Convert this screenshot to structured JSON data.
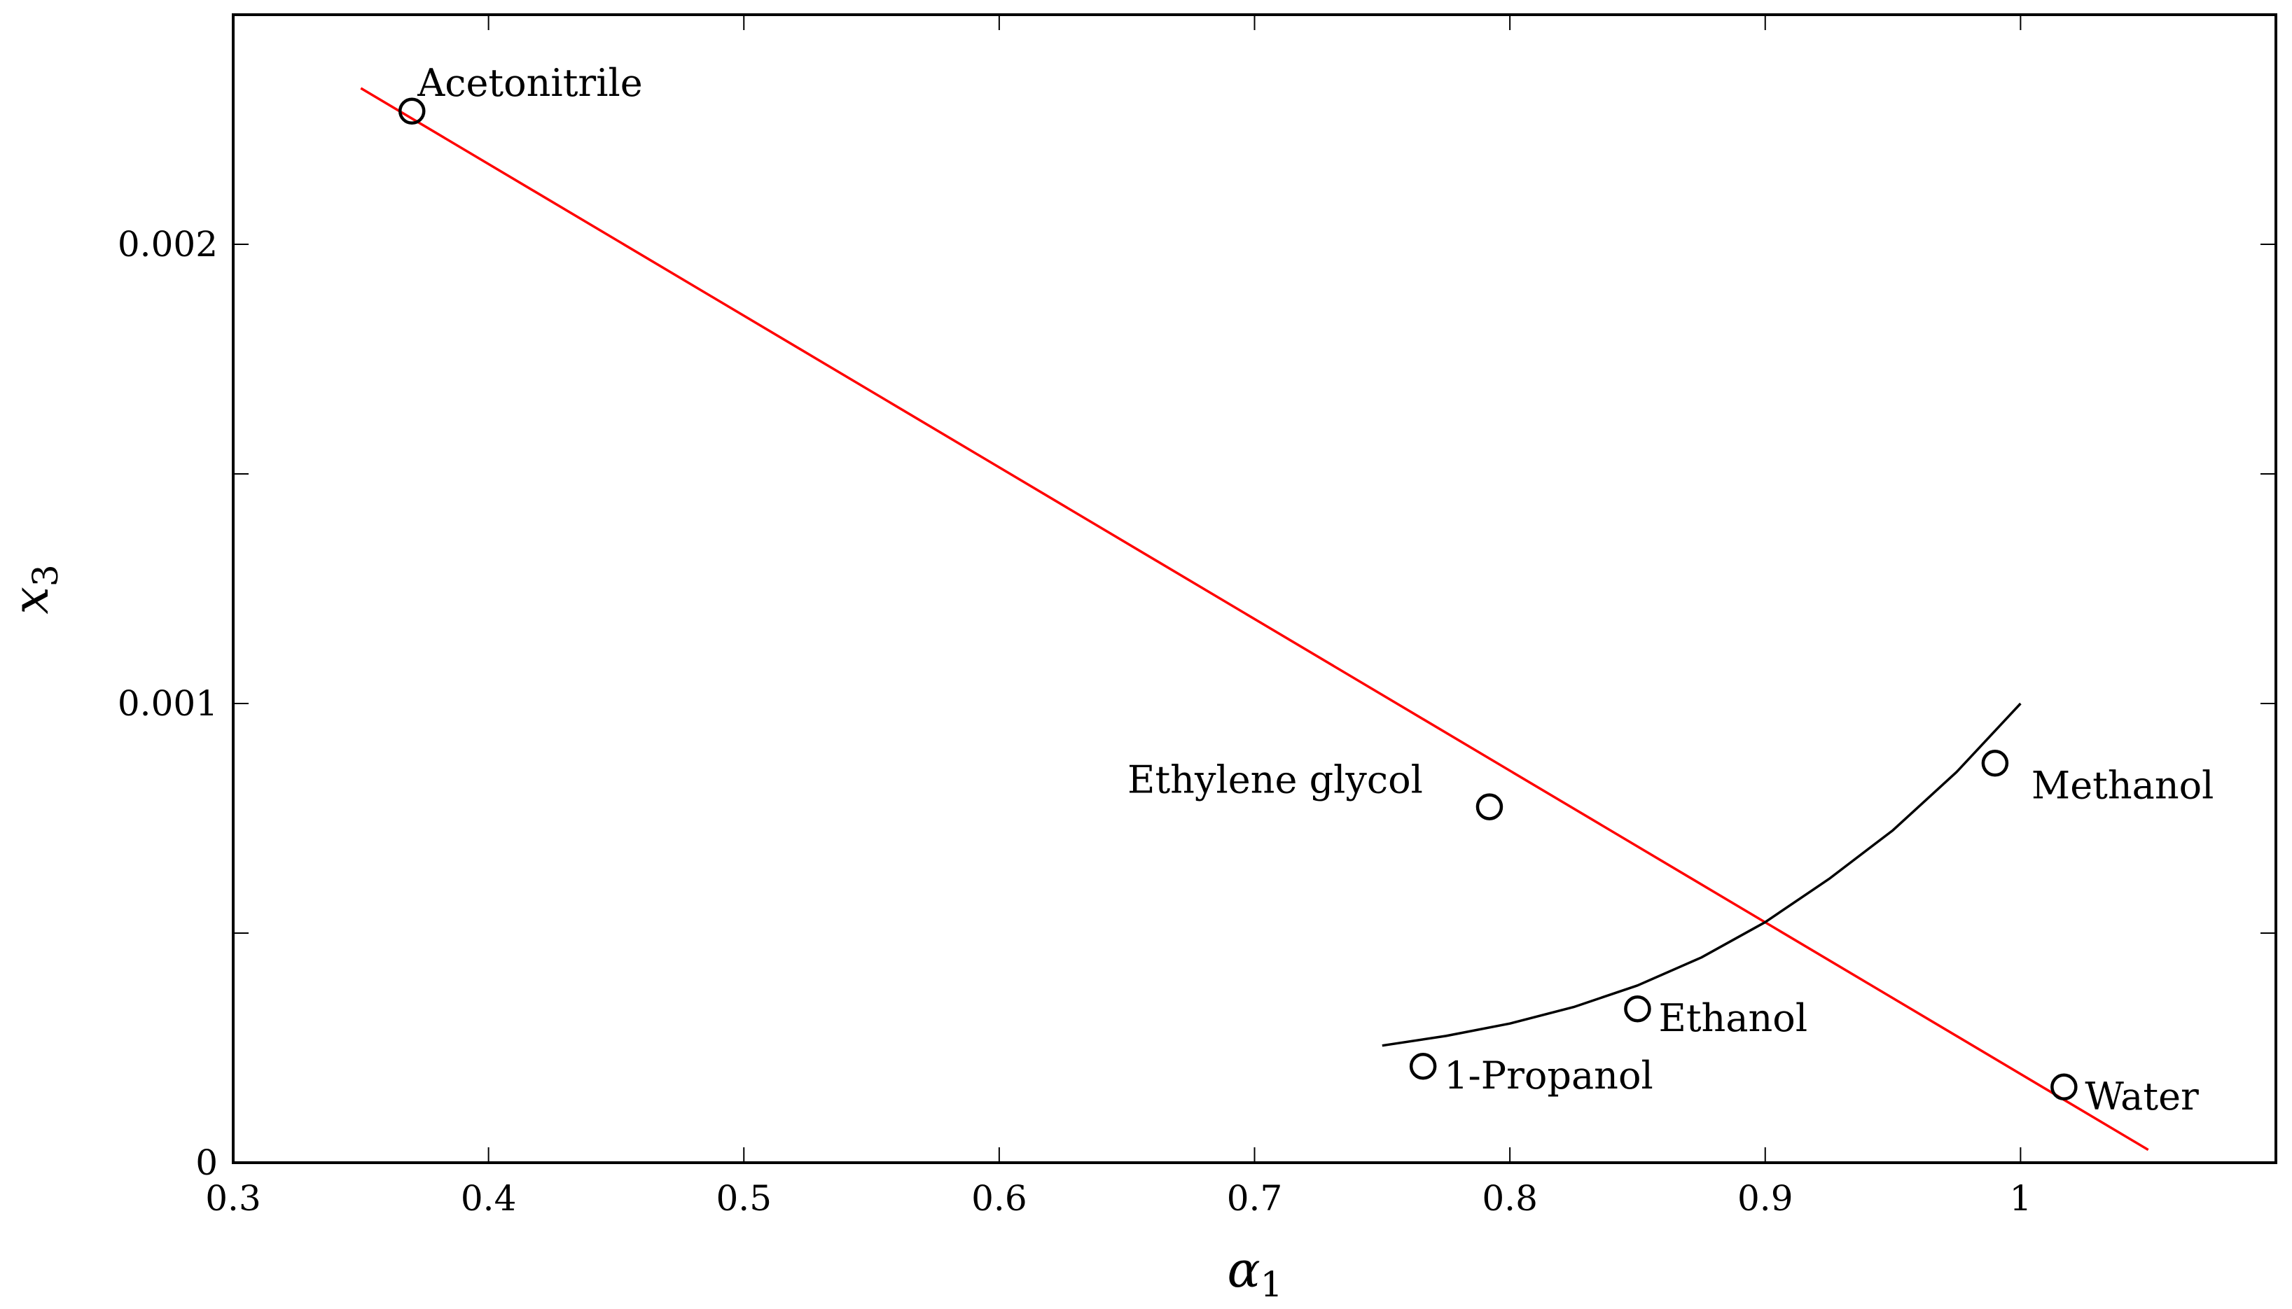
{
  "chart_data": {
    "type": "scatter",
    "title": "",
    "xlabel": {
      "symbol": "α",
      "subscript": "1"
    },
    "ylabel": {
      "symbol": "x",
      "subscript": "3"
    },
    "xlim": [
      0.3,
      1.1
    ],
    "ylim": [
      0,
      0.0025
    ],
    "x_ticks": [
      {
        "value": 0.3,
        "label": "0.3"
      },
      {
        "value": 0.4,
        "label": "0.4"
      },
      {
        "value": 0.5,
        "label": "0.5"
      },
      {
        "value": 0.6,
        "label": "0.6"
      },
      {
        "value": 0.7,
        "label": "0.7"
      },
      {
        "value": 0.8,
        "label": "0.8"
      },
      {
        "value": 0.9,
        "label": "0.9"
      },
      {
        "value": 1.0,
        "label": "1"
      },
      {
        "value": 1.1,
        "label": ""
      }
    ],
    "y_ticks": [
      {
        "value": 0,
        "label": "0"
      },
      {
        "value": 0.0005,
        "label": ""
      },
      {
        "value": 0.001,
        "label": "0.001"
      },
      {
        "value": 0.0015,
        "label": ""
      },
      {
        "value": 0.002,
        "label": "0.002"
      }
    ],
    "grid": false,
    "points": [
      {
        "label": "Acetonitrile",
        "x": 0.37,
        "y": 0.00229,
        "label_anchor": "above-right"
      },
      {
        "label": "Ethylene glycol",
        "x": 0.792,
        "y": 0.000775,
        "label_anchor": "left"
      },
      {
        "label": "Methanol",
        "x": 0.99,
        "y": 0.00087,
        "label_anchor": "below-right"
      },
      {
        "label": "Ethanol",
        "x": 0.85,
        "y": 0.000335,
        "label_anchor": "right"
      },
      {
        "label": "1-Propanol",
        "x": 0.766,
        "y": 0.00021,
        "label_anchor": "right"
      },
      {
        "label": "Water",
        "x": 1.017,
        "y": 0.000165,
        "label_anchor": "right"
      }
    ],
    "lines": [
      {
        "kind": "linear",
        "color": "#ff0000",
        "x": [
          0.35,
          1.05
        ],
        "y": [
          0.00234,
          2.8e-05
        ]
      },
      {
        "kind": "curve",
        "color": "#000000",
        "x": [
          0.75,
          0.775,
          0.8,
          0.825,
          0.85,
          0.875,
          0.9,
          0.925,
          0.95,
          0.975,
          1.0
        ],
        "y": [
          0.000255,
          0.000276,
          0.000303,
          0.000339,
          0.000386,
          0.000447,
          0.000524,
          0.000618,
          0.000724,
          0.000851,
          0.001
        ]
      }
    ],
    "colors": {
      "linear_fit": "#ff0000",
      "curve": "#000000",
      "markers": "#000000"
    }
  }
}
